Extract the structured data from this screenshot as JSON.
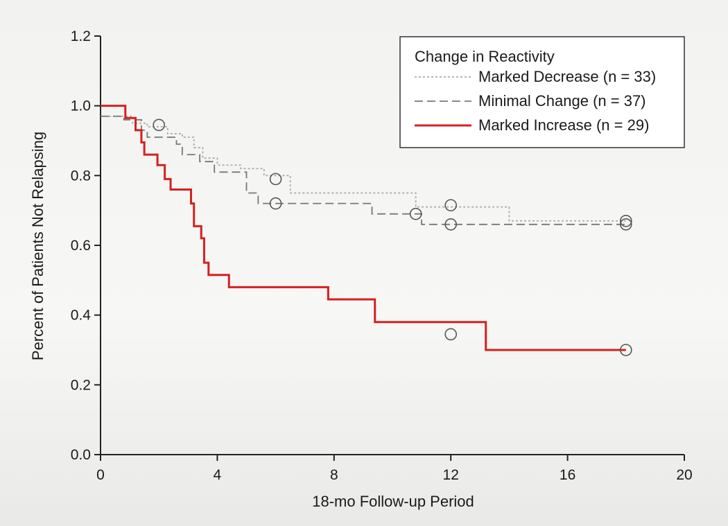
{
  "chart_data": {
    "type": "line",
    "subtype": "kaplan-meier step",
    "xlabel": "18-mo Follow-up Period",
    "ylabel": "Percent of Patients Not Relapsing",
    "xlim": [
      0,
      20
    ],
    "ylim": [
      0,
      1.2
    ],
    "xticks": [
      0,
      4,
      8,
      12,
      16,
      20
    ],
    "yticks": [
      0.0,
      0.2,
      0.4,
      0.6,
      0.8,
      1.0,
      1.2
    ],
    "xtick_labels": [
      "0",
      "4",
      "8",
      "12",
      "16",
      "20"
    ],
    "ytick_labels": [
      "0.0",
      "0.2",
      "0.4",
      "0.6",
      "0.8",
      "1.0",
      "1.2"
    ],
    "grid": false,
    "legend": {
      "title": "Change in Reactivity",
      "placement": "top-right"
    },
    "series": [
      {
        "name": "Marked Decrease (n = 33)",
        "color": "#aaaaaa",
        "style": "dotted",
        "steps": [
          [
            0,
            0.97
          ],
          [
            1.1,
            0.95
          ],
          [
            1.6,
            0.94
          ],
          [
            2.3,
            0.92
          ],
          [
            2.8,
            0.91
          ],
          [
            3.2,
            0.88
          ],
          [
            3.5,
            0.85
          ],
          [
            4.0,
            0.83
          ],
          [
            4.8,
            0.82
          ],
          [
            5.6,
            0.8
          ],
          [
            6.5,
            0.75
          ],
          [
            10.8,
            0.71
          ],
          [
            14.0,
            0.67
          ],
          [
            18.0,
            0.67
          ]
        ],
        "censored": [
          [
            6.0,
            0.79
          ],
          [
            12.0,
            0.715
          ],
          [
            18.0,
            0.67
          ]
        ]
      },
      {
        "name": "Minimal Change (n = 37)",
        "color": "#777777",
        "style": "dashed",
        "steps": [
          [
            0,
            0.97
          ],
          [
            0.8,
            0.96
          ],
          [
            1.4,
            0.93
          ],
          [
            1.6,
            0.91
          ],
          [
            2.6,
            0.89
          ],
          [
            2.8,
            0.86
          ],
          [
            3.4,
            0.84
          ],
          [
            3.9,
            0.81
          ],
          [
            5.0,
            0.75
          ],
          [
            5.4,
            0.72
          ],
          [
            9.3,
            0.69
          ],
          [
            11.0,
            0.66
          ],
          [
            18.0,
            0.66
          ]
        ],
        "censored": [
          [
            2.0,
            0.945
          ],
          [
            6.0,
            0.72
          ],
          [
            10.8,
            0.69
          ],
          [
            12.0,
            0.66
          ],
          [
            18.0,
            0.66
          ]
        ]
      },
      {
        "name": "Marked Increase (n = 29)",
        "color": "#d42020",
        "style": "solid",
        "steps": [
          [
            0,
            1.0
          ],
          [
            0.85,
            0.965
          ],
          [
            1.2,
            0.93
          ],
          [
            1.4,
            0.895
          ],
          [
            1.5,
            0.86
          ],
          [
            1.95,
            0.83
          ],
          [
            2.2,
            0.79
          ],
          [
            2.4,
            0.76
          ],
          [
            3.1,
            0.72
          ],
          [
            3.2,
            0.655
          ],
          [
            3.45,
            0.62
          ],
          [
            3.55,
            0.55
          ],
          [
            3.7,
            0.515
          ],
          [
            4.4,
            0.48
          ],
          [
            7.8,
            0.445
          ],
          [
            9.4,
            0.38
          ],
          [
            13.2,
            0.3
          ],
          [
            18.0,
            0.3
          ]
        ],
        "censored": [
          [
            12.0,
            0.345
          ],
          [
            18.0,
            0.3
          ]
        ]
      }
    ]
  },
  "legend_entries": [
    {
      "label": "Marked Decrease (n = 33)",
      "color": "#aaaaaa",
      "style": "dotted"
    },
    {
      "label": "Minimal Change (n = 37)",
      "color": "#777777",
      "style": "dashed"
    },
    {
      "label": "Marked Increase (n = 29)",
      "color": "#d42020",
      "style": "solid"
    }
  ]
}
